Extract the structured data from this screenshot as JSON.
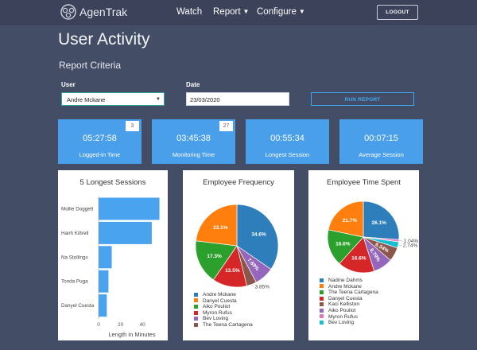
{
  "app": {
    "brand": "AgenTrak",
    "logout_label": "LOGOUT"
  },
  "nav": [
    {
      "label": "Watch",
      "has_dropdown": false
    },
    {
      "label": "Report",
      "has_dropdown": true
    },
    {
      "label": "Configure",
      "has_dropdown": true
    }
  ],
  "page": {
    "title": "User Activity",
    "criteria_heading": "Report Criteria"
  },
  "form": {
    "user_label": "User",
    "user_value": "Andre Mckane",
    "date_label": "Date",
    "date_value": "23/03/2020",
    "run_label": "RUN REPORT"
  },
  "stats": [
    {
      "value": "05:27:58",
      "label": "Logged-in Time",
      "badge": "3"
    },
    {
      "value": "03:45:38",
      "label": "Monitoring Time",
      "badge": "27"
    },
    {
      "value": "00:55:34",
      "label": "Longest Session",
      "badge": ""
    },
    {
      "value": "00:07:15",
      "label": "Average Session",
      "badge": ""
    }
  ],
  "colors": {
    "accent": "#4a9fea",
    "bar": "#4aa3ee",
    "background": "#444d66"
  },
  "chart_data": [
    {
      "type": "bar",
      "orientation": "horizontal",
      "title": "5 Longest Sessions",
      "xlabel": "Length in Minutes",
      "categories": [
        "Mollie Doggett",
        "Hanh Kittrell",
        "Na Stollings",
        "Tonda Puga",
        "Danyel Cuesta"
      ],
      "values": [
        55.5,
        48.5,
        12,
        9,
        7.5
      ],
      "xlim": [
        0,
        58
      ],
      "xticks": [
        0,
        20,
        40
      ],
      "grid": false,
      "legend": "none"
    },
    {
      "type": "pie",
      "title": "Employee Frequency",
      "slices": [
        {
          "name": "Andre Mckane",
          "value": 34.6,
          "label": "34.6%",
          "color": "#2f7ebc"
        },
        {
          "name": "Bev Loving",
          "value": 7.69,
          "label": "7.69%",
          "color": "#9467bd"
        },
        {
          "name": "The Teena Cartagena",
          "value": 3.85,
          "label": "3.85%",
          "color": "#8c564b"
        },
        {
          "name": "Myron Rufus",
          "value": 13.5,
          "label": "13.5%",
          "color": "#d62728"
        },
        {
          "name": "Aiko Pouliot",
          "value": 17.3,
          "label": "17.3%",
          "color": "#2ca02c"
        },
        {
          "name": "Danyel Cuesta",
          "value": 23.1,
          "label": "23.1%",
          "color": "#ff7f0e"
        }
      ],
      "legend": [
        "Andre Mckane",
        "Danyel Cuesta",
        "Aiko Pouliot",
        "Myron Rufus",
        "Bev Loving",
        "The Teena Cartagena"
      ],
      "legend_position": "bottom"
    },
    {
      "type": "pie",
      "title": "Employee Time Spent",
      "slices": [
        {
          "name": "Nadine Dahms",
          "value": 26.1,
          "label": "26.1%",
          "color": "#2f7ebc"
        },
        {
          "name": "Myron Rufus",
          "value": 1.04,
          "label": "1.04%",
          "color": "#e377c2"
        },
        {
          "name": "Bev Loving",
          "value": 2.74,
          "label": "2.74%",
          "color": "#17becf"
        },
        {
          "name": "Kaci Kelliston",
          "value": 6.34,
          "label": "6.34%",
          "color": "#8c564b"
        },
        {
          "name": "Aiko Pouliot",
          "value": 8.79,
          "label": "8.79%",
          "color": "#9467bd"
        },
        {
          "name": "Danyel Cuesta",
          "value": 16.6,
          "label": "16.6%",
          "color": "#d62728"
        },
        {
          "name": "The Teena Cartagena",
          "value": 16.6,
          "label": "16.6%",
          "color": "#2ca02c"
        },
        {
          "name": "Andre Mckane",
          "value": 21.7,
          "label": "21.7%",
          "color": "#ff7f0e"
        }
      ],
      "legend": [
        "Nadine Dahms",
        "Andre Mckane",
        "The Teena Cartagena",
        "Danyel Cuesta",
        "Kaci Kelliston",
        "Aiko Pouliot",
        "Myron Rufus",
        "Bev Loving"
      ],
      "legend_position": "bottom"
    }
  ]
}
